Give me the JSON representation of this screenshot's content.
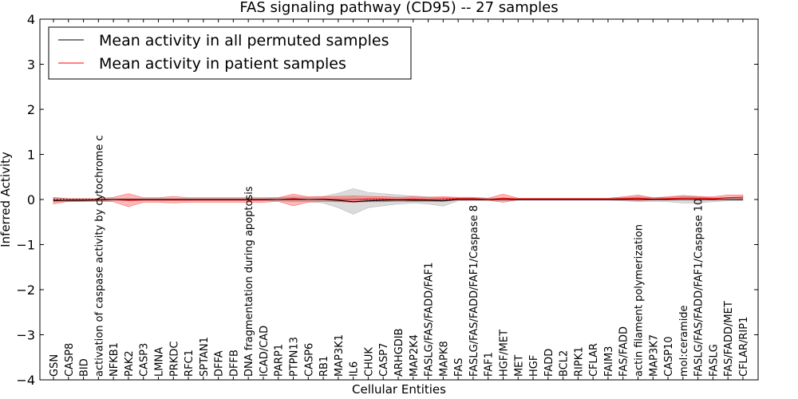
{
  "chart_data": {
    "type": "line",
    "title": "FAS signaling pathway (CD95) -- 27 samples",
    "xlabel": "Cellular Entities",
    "ylabel": "Inferred Activity",
    "ylim": [
      -4,
      4
    ],
    "yticks": [
      "−4",
      "−3",
      "−2",
      "−1",
      "0",
      "1",
      "2",
      "3",
      "4"
    ],
    "ytick_values": [
      -4,
      -3,
      -2,
      -1,
      0,
      1,
      2,
      3,
      4
    ],
    "legend_position": "top-left",
    "categories": [
      "GSN",
      "CASP8",
      "BID",
      "activation of caspase activity by cytochrome c",
      "NFKB1",
      "PAK2",
      "CASP3",
      "LMNA",
      "PRKDC",
      "RFC1",
      "SPTAN1",
      "DFFA",
      "DFFB",
      "DNA fragmentation during apoptosis",
      "ICAD/CAD",
      "PARP1",
      "PTPN13",
      "CASP6",
      "RB1",
      "MAP3K1",
      "IL6",
      "CHUK",
      "CASP7",
      "ARHGDIB",
      "MAP2K4",
      "FASLG/FAS/FADD/FAF1",
      "MAPK8",
      "FAS",
      "FASLG/FAS/FADD/FAF1/Caspase 8",
      "FAF1",
      "HGF/MET",
      "MET",
      "HGF",
      "FADD",
      "BCL2",
      "RIPK1",
      "CFLAR",
      "FAIM3",
      "FAS/FADD",
      "actin filament polymerization",
      "MAP3K7",
      "CASP10",
      "mol:ceramide",
      "FASLG/FAS/FADD/FAF1/Caspase 10",
      "FASLG",
      "FAS/FADD/MET",
      "CFLAR/RIP1"
    ],
    "series": [
      {
        "name": "Mean activity in all permuted samples",
        "color": "#000000",
        "values": [
          -0.02,
          -0.02,
          -0.02,
          -0.01,
          0.0,
          0.0,
          0.0,
          0.0,
          0.0,
          0.0,
          0.0,
          0.0,
          0.0,
          0.0,
          0.0,
          0.0,
          0.0,
          0.0,
          0.0,
          -0.02,
          -0.05,
          -0.03,
          -0.02,
          -0.01,
          -0.02,
          -0.02,
          -0.03,
          0.0,
          0.0,
          0.0,
          0.0,
          0.0,
          0.0,
          0.0,
          0.0,
          0.0,
          0.0,
          0.0,
          0.0,
          0.0,
          0.0,
          0.0,
          0.0,
          0.0,
          0.0,
          0.0,
          0.0
        ],
        "band_lower": [
          -0.05,
          -0.05,
          -0.04,
          -0.03,
          -0.02,
          -0.02,
          -0.02,
          -0.02,
          -0.02,
          -0.02,
          -0.02,
          -0.02,
          -0.02,
          -0.02,
          -0.02,
          -0.03,
          -0.05,
          -0.05,
          -0.08,
          -0.18,
          -0.33,
          -0.18,
          -0.14,
          -0.1,
          -0.08,
          -0.1,
          -0.15,
          -0.03,
          -0.03,
          -0.02,
          -0.02,
          -0.02,
          -0.02,
          -0.02,
          -0.02,
          -0.02,
          -0.02,
          -0.02,
          -0.03,
          -0.05,
          -0.04,
          -0.05,
          -0.08,
          -0.08,
          -0.05,
          -0.03,
          -0.03
        ],
        "band_upper": [
          0.03,
          0.02,
          0.02,
          0.02,
          0.02,
          0.02,
          0.02,
          0.02,
          0.02,
          0.02,
          0.02,
          0.02,
          0.02,
          0.02,
          0.02,
          0.04,
          0.06,
          0.05,
          0.07,
          0.14,
          0.24,
          0.16,
          0.13,
          0.1,
          0.08,
          0.06,
          0.05,
          0.03,
          0.03,
          0.02,
          0.02,
          0.02,
          0.02,
          0.02,
          0.02,
          0.02,
          0.02,
          0.02,
          0.04,
          0.06,
          0.04,
          0.05,
          0.07,
          0.06,
          0.04,
          0.03,
          0.03
        ]
      },
      {
        "name": "Mean activity in patient samples",
        "color": "#ff0000",
        "values": [
          -0.03,
          -0.01,
          -0.01,
          -0.01,
          0.0,
          -0.02,
          -0.01,
          -0.01,
          -0.01,
          -0.01,
          -0.01,
          -0.01,
          -0.01,
          -0.01,
          -0.01,
          0.0,
          0.02,
          0.0,
          0.01,
          0.0,
          0.0,
          0.01,
          0.01,
          0.0,
          0.01,
          0.0,
          0.01,
          0.02,
          0.02,
          0.0,
          0.03,
          0.01,
          0.01,
          0.01,
          0.01,
          0.01,
          0.01,
          0.01,
          0.02,
          0.03,
          0.01,
          0.02,
          0.03,
          0.03,
          0.02,
          0.04,
          0.05
        ],
        "band_lower": [
          -0.1,
          -0.04,
          -0.04,
          -0.04,
          -0.05,
          -0.16,
          -0.06,
          -0.06,
          -0.08,
          -0.06,
          -0.06,
          -0.06,
          -0.06,
          -0.06,
          -0.06,
          -0.04,
          -0.14,
          -0.06,
          -0.04,
          -0.05,
          -0.06,
          -0.05,
          -0.05,
          -0.04,
          -0.04,
          -0.04,
          -0.04,
          -0.01,
          -0.01,
          -0.02,
          -0.06,
          -0.01,
          -0.01,
          -0.01,
          -0.01,
          -0.01,
          -0.01,
          -0.01,
          -0.01,
          -0.02,
          -0.01,
          -0.01,
          0.0,
          -0.01,
          -0.01,
          0.0,
          0.01
        ],
        "band_upper": [
          0.05,
          0.02,
          0.02,
          0.02,
          0.05,
          0.13,
          0.04,
          0.04,
          0.07,
          0.04,
          0.04,
          0.04,
          0.04,
          0.04,
          0.04,
          0.04,
          0.12,
          0.06,
          0.06,
          0.07,
          0.08,
          0.07,
          0.06,
          0.05,
          0.06,
          0.05,
          0.06,
          0.05,
          0.05,
          0.03,
          0.12,
          0.03,
          0.03,
          0.03,
          0.03,
          0.03,
          0.03,
          0.03,
          0.06,
          0.1,
          0.04,
          0.06,
          0.09,
          0.07,
          0.06,
          0.1,
          0.1
        ]
      }
    ]
  }
}
